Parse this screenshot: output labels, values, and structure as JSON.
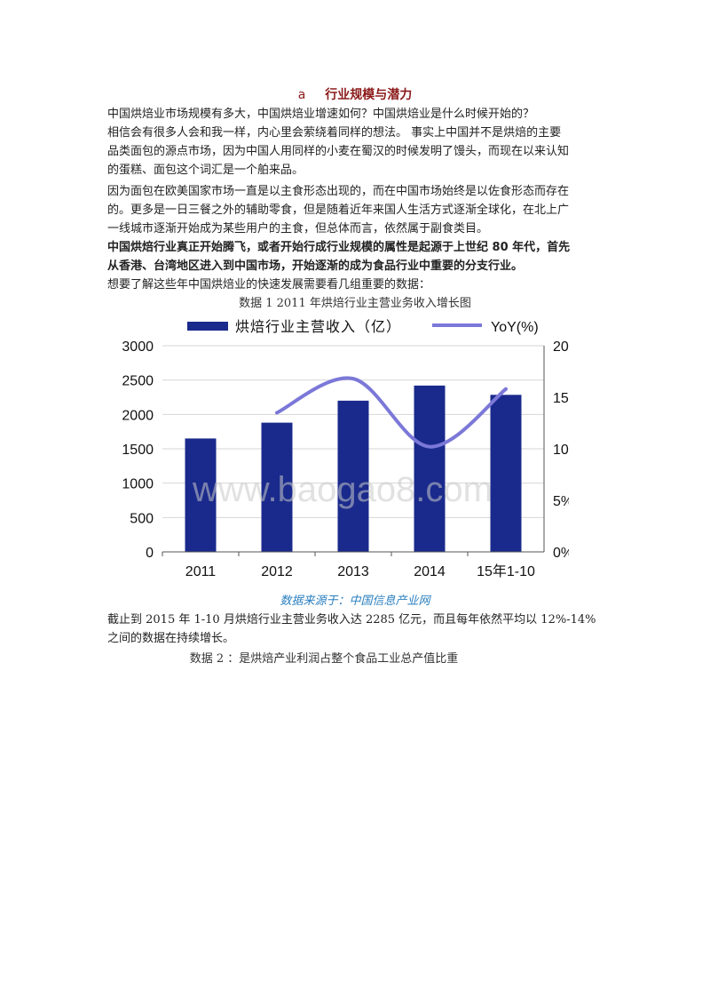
{
  "section": {
    "number": "a",
    "title": "行业规模与潜力"
  },
  "paragraphs": {
    "p1": "中国烘焙业市场规模有多大，中国烘焙业增速如何？中国烘焙业是什么时候开始的？",
    "p2_l1": "相信会有很多人会和我一样，内心里会萦绕着同样的想法。 事实上中国并不是烘焙的主要",
    "p2_l2": "品类面包的源点市场，因为中国人用同样的小麦在蜀汉的时候发明了馒头，而现在以来认知",
    "p2_l3": "的蛋糕、面包这个词汇是一个舶来品。",
    "p3_l1": "因为面包在欧美国家市场一直是以主食形态出现的，而在中国市场始终是以佐食形态而存在",
    "p3_l2": "的。更多是一日三餐之外的辅助零食，但是随着近年来国人生活方式逐渐全球化，在北上广",
    "p3_l3": "一线城市逐渐开始成为某些用户的主食，但总体而言，依然属于副食类目。",
    "p4_l1": "中国烘焙行业真正开始腾飞，或者开始行成行业规模的属性是起源于上世纪 80 年代，首先",
    "p4_l2": "从香港、台湾地区进入到中国市场，开始逐渐的成为食品行业中重要的分支行业。",
    "p5": "想要了解这些年中国烘焙业的快速发展需要看几组重要的数据：",
    "caption1": "数据 1  2011 年烘焙行业主营业务收入增长图",
    "source": "数据来源于：中国信息产业网",
    "p6_l1": "截止到 2015 年  1-10 月烘焙行业主营业务收入达  2285  亿元，而且每年依然平均以 12%-14%",
    "p6_l2": "之间的数据在持续增长。",
    "caption2": "数据 2     ：是烘焙产业利润占整个食品工业总产值比重"
  },
  "chart_data": {
    "type": "bar",
    "categories": [
      "2011",
      "2012",
      "2013",
      "2014",
      "15年1-10"
    ],
    "series": [
      {
        "name": "烘焙行业主营收入（亿）",
        "values": [
          1650,
          1880,
          2200,
          2420,
          2285
        ],
        "axis": "left",
        "kind": "bar",
        "color": "#1a2a8c"
      },
      {
        "name": "YoY(%)",
        "values": [
          null,
          13.5,
          16.8,
          10.2,
          15.8
        ],
        "axis": "right",
        "kind": "line",
        "color": "#7b78d8"
      }
    ],
    "ylim": [
      0,
      3000
    ],
    "yticks": [
      "0",
      "500",
      "1000",
      "1500",
      "2000",
      "2500",
      "3000"
    ],
    "y2lim": [
      0,
      20
    ],
    "y2ticks": [
      "0%",
      "5%",
      "10%",
      "15%",
      "20%"
    ],
    "grid": true,
    "legend": "top",
    "watermark": "www.baogao8.com"
  }
}
